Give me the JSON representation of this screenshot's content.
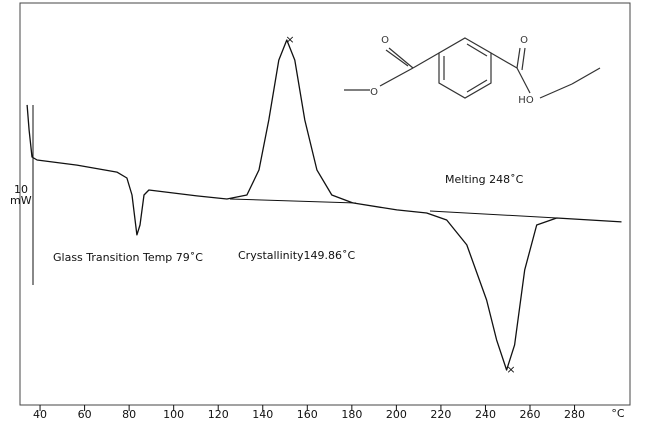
{
  "chart_data": {
    "type": "line",
    "x": [
      34.2,
      35.1,
      36.4,
      38.7,
      56.6,
      74.5,
      79,
      81.3,
      83.5,
      84.9,
      86.7,
      88.9,
      110.4,
      123.9,
      132.9,
      138.3,
      142.7,
      147.2,
      150.8,
      154.4,
      158.9,
      164.3,
      171,
      180.4,
      200.2,
      213.6,
      222.6,
      231.6,
      240.5,
      245,
      249.5,
      253.1,
      257.6,
      263,
      272,
      301.1
    ],
    "values": [
      6.12,
      4.72,
      3.22,
      3.05,
      2.77,
      2.38,
      2.05,
      1.1,
      -1.12,
      -0.57,
      1.1,
      1.38,
      1.05,
      0.88,
      1.1,
      2.5,
      5.28,
      8.62,
      9.74,
      8.62,
      5.28,
      2.5,
      1.1,
      0.66,
      0.27,
      0.1,
      -0.29,
      -1.68,
      -4.75,
      -6.97,
      -8.65,
      -7.25,
      -3.07,
      -0.57,
      -0.18,
      -0.4
    ],
    "color": "#111111",
    "xlim": [
      31,
      304
    ],
    "xticks": [
      40,
      60,
      80,
      100,
      120,
      140,
      160,
      180,
      200,
      220,
      240,
      260,
      280
    ],
    "ylim": [
      -10.6,
      11.8
    ],
    "x_label": "°C",
    "scale_bar": [
      "10",
      "mW"
    ],
    "annotations": [
      "Glass Transition Temp 79˚C",
      "Crystallinity149.86˚C",
      "Melting 248˚C"
    ]
  },
  "structure": {
    "labels": [
      "O",
      "O",
      "O",
      "HO"
    ]
  }
}
